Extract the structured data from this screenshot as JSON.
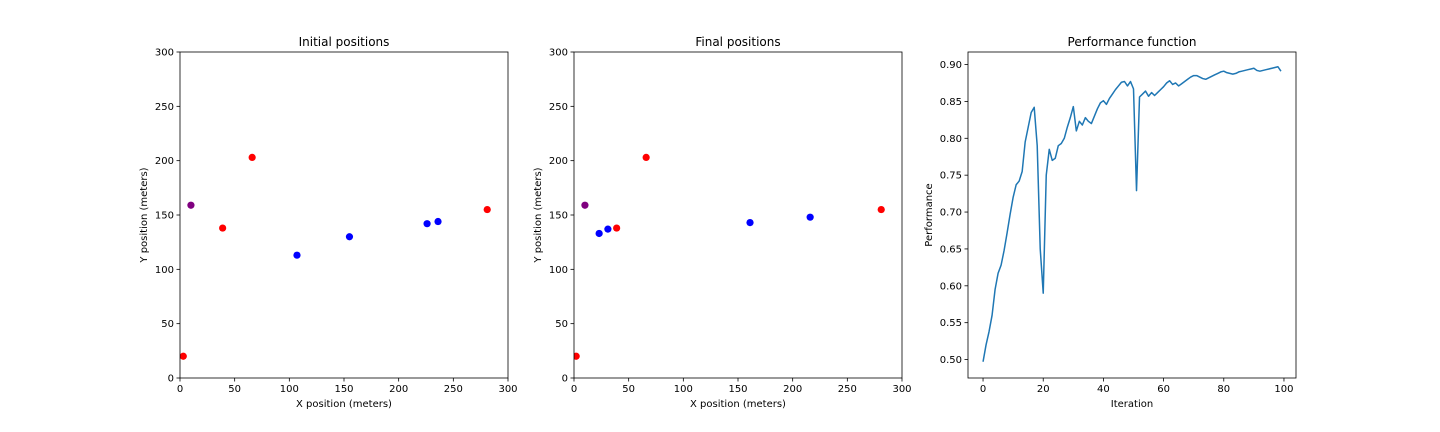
{
  "chart_data": [
    {
      "type": "scatter",
      "title": "Initial positions",
      "xlabel": "X position (meters)",
      "ylabel": "Y position (meters)",
      "xlim": [
        0,
        300
      ],
      "ylim": [
        0,
        300
      ],
      "xticks": [
        0,
        50,
        100,
        150,
        200,
        250,
        300
      ],
      "yticks": [
        0,
        50,
        100,
        150,
        200,
        250,
        300
      ],
      "grid": false,
      "points": [
        {
          "x": 3,
          "y": 20,
          "color": "#ff0000"
        },
        {
          "x": 39,
          "y": 138,
          "color": "#ff0000"
        },
        {
          "x": 66,
          "y": 203,
          "color": "#ff0000"
        },
        {
          "x": 281,
          "y": 155,
          "color": "#ff0000"
        },
        {
          "x": 10,
          "y": 159,
          "color": "#800080"
        },
        {
          "x": 107,
          "y": 113,
          "color": "#0000ff"
        },
        {
          "x": 155,
          "y": 130,
          "color": "#0000ff"
        },
        {
          "x": 226,
          "y": 142,
          "color": "#0000ff"
        },
        {
          "x": 236,
          "y": 144,
          "color": "#0000ff"
        }
      ]
    },
    {
      "type": "scatter",
      "title": "Final positions",
      "xlabel": "X position (meters)",
      "ylabel": "Y position (meters)",
      "xlim": [
        0,
        300
      ],
      "ylim": [
        0,
        300
      ],
      "xticks": [
        0,
        50,
        100,
        150,
        200,
        250,
        300
      ],
      "yticks": [
        0,
        50,
        100,
        150,
        200,
        250,
        300
      ],
      "grid": false,
      "points": [
        {
          "x": 2,
          "y": 20,
          "color": "#ff0000"
        },
        {
          "x": 39,
          "y": 138,
          "color": "#ff0000"
        },
        {
          "x": 66,
          "y": 203,
          "color": "#ff0000"
        },
        {
          "x": 281,
          "y": 155,
          "color": "#ff0000"
        },
        {
          "x": 10,
          "y": 159,
          "color": "#800080"
        },
        {
          "x": 23,
          "y": 133,
          "color": "#0000ff"
        },
        {
          "x": 31,
          "y": 137,
          "color": "#0000ff"
        },
        {
          "x": 161,
          "y": 143,
          "color": "#0000ff"
        },
        {
          "x": 216,
          "y": 148,
          "color": "#0000ff"
        }
      ]
    },
    {
      "type": "line",
      "title": "Performance function",
      "xlabel": "Iteration",
      "ylabel": "Performance",
      "xlim": [
        -5,
        104
      ],
      "ylim": [
        0.475,
        0.917
      ],
      "xticks": [
        0,
        20,
        40,
        60,
        80,
        100
      ],
      "yticks": [
        0.5,
        0.55,
        0.6,
        0.65,
        0.7,
        0.75,
        0.8,
        0.85,
        0.9
      ],
      "ytick_labels": [
        "0.50",
        "0.55",
        "0.60",
        "0.65",
        "0.70",
        "0.75",
        "0.80",
        "0.85",
        "0.90"
      ],
      "grid": false,
      "color": "#1f77b4",
      "x": [
        0,
        1,
        2,
        3,
        4,
        5,
        6,
        7,
        8,
        9,
        10,
        11,
        12,
        13,
        14,
        15,
        16,
        17,
        18,
        19,
        20,
        21,
        22,
        23,
        24,
        25,
        26,
        27,
        28,
        29,
        30,
        31,
        32,
        33,
        34,
        35,
        36,
        37,
        38,
        39,
        40,
        41,
        42,
        43,
        44,
        45,
        46,
        47,
        48,
        49,
        50,
        51,
        52,
        53,
        54,
        55,
        56,
        57,
        58,
        59,
        60,
        61,
        62,
        63,
        64,
        65,
        66,
        67,
        68,
        69,
        70,
        71,
        72,
        73,
        74,
        75,
        76,
        77,
        78,
        79,
        80,
        81,
        82,
        83,
        84,
        85,
        86,
        87,
        88,
        89,
        90,
        91,
        92,
        93,
        94,
        95,
        96,
        97,
        98,
        99
      ],
      "values": [
        0.497,
        0.52,
        0.538,
        0.56,
        0.595,
        0.617,
        0.628,
        0.648,
        0.672,
        0.697,
        0.72,
        0.737,
        0.742,
        0.755,
        0.795,
        0.815,
        0.835,
        0.842,
        0.79,
        0.65,
        0.59,
        0.75,
        0.785,
        0.77,
        0.773,
        0.79,
        0.793,
        0.8,
        0.815,
        0.828,
        0.843,
        0.81,
        0.823,
        0.818,
        0.828,
        0.823,
        0.82,
        0.83,
        0.84,
        0.848,
        0.851,
        0.846,
        0.854,
        0.86,
        0.866,
        0.871,
        0.876,
        0.877,
        0.871,
        0.877,
        0.867,
        0.729,
        0.856,
        0.86,
        0.864,
        0.857,
        0.862,
        0.858,
        0.862,
        0.866,
        0.87,
        0.875,
        0.878,
        0.873,
        0.875,
        0.871,
        0.874,
        0.877,
        0.88,
        0.883,
        0.885,
        0.885,
        0.883,
        0.881,
        0.88,
        0.882,
        0.884,
        0.886,
        0.888,
        0.89,
        0.891,
        0.889,
        0.888,
        0.887,
        0.888,
        0.89,
        0.891,
        0.892,
        0.893,
        0.894,
        0.895,
        0.892,
        0.891,
        0.892,
        0.893,
        0.894,
        0.895,
        0.896,
        0.897,
        0.891
      ]
    }
  ]
}
